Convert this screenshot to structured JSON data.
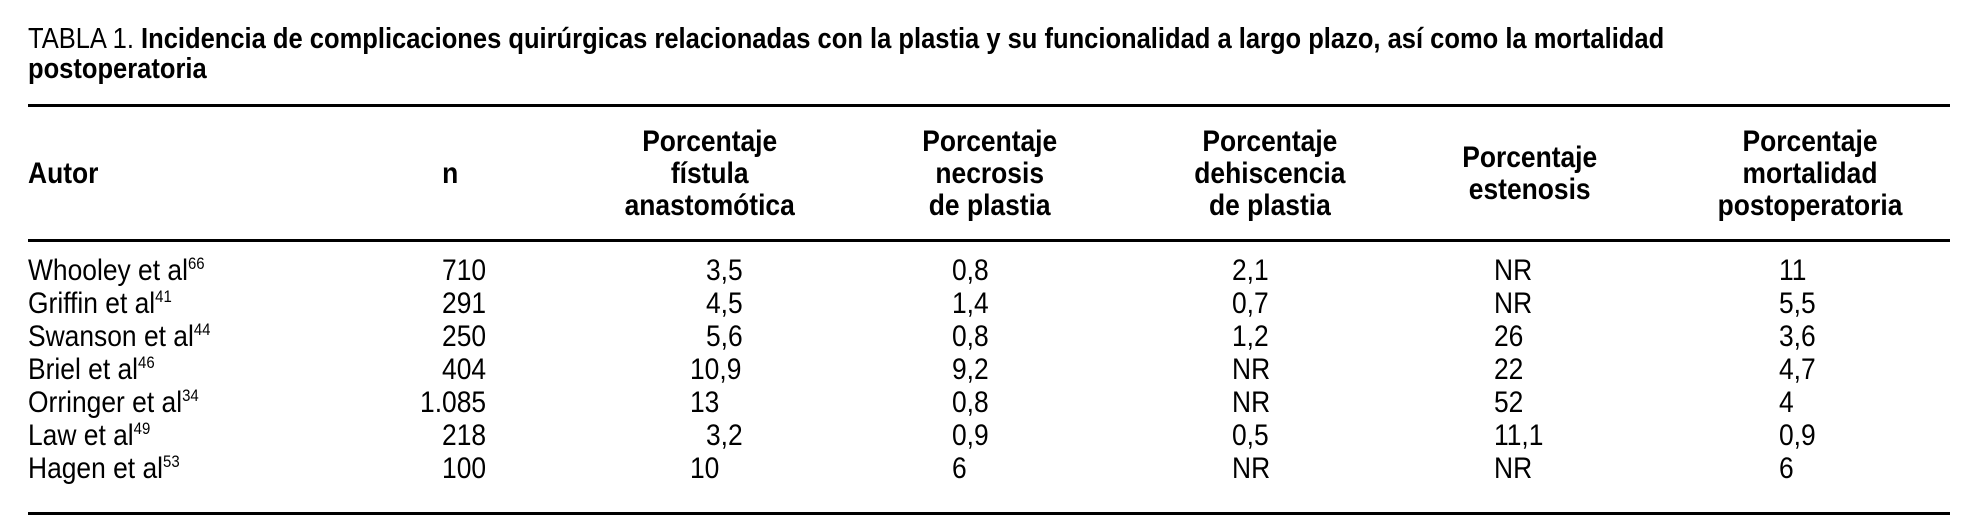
{
  "table": {
    "label": "TABLA 1.",
    "title": "Incidencia de complicaciones quirúrgicas relacionadas con la plastia y su funcionalidad a largo plazo, así como la mortalidad postoperatoria",
    "columns": [
      {
        "key": "autor",
        "label": "Autor"
      },
      {
        "key": "n",
        "label": "n"
      },
      {
        "key": "fistula",
        "label": "Porcentaje\nfístula\nanastomótica"
      },
      {
        "key": "necrosis",
        "label": "Porcentaje\nnecrosis\nde plastia"
      },
      {
        "key": "dehiscencia",
        "label": "Porcentaje\ndehiscencia\nde plastia"
      },
      {
        "key": "estenosis",
        "label": "Porcentaje\nestenosis"
      },
      {
        "key": "mortalidad",
        "label": "Porcentaje\nmortalidad\npostoperatoria"
      }
    ],
    "rows": [
      {
        "autor": "Whooley et al",
        "ref": "66",
        "n": "710",
        "fistula": "3,5",
        "necrosis": "0,8",
        "dehiscencia": "2,1",
        "estenosis": "NR",
        "mortalidad": "11"
      },
      {
        "autor": "Griffin et al",
        "ref": "41",
        "n": "291",
        "fistula": "4,5",
        "necrosis": "1,4",
        "dehiscencia": "0,7",
        "estenosis": "NR",
        "mortalidad": "5,5"
      },
      {
        "autor": "Swanson et al",
        "ref": "44",
        "n": "250",
        "fistula": "5,6",
        "necrosis": "0,8",
        "dehiscencia": "1,2",
        "estenosis": "26",
        "mortalidad": "3,6"
      },
      {
        "autor": "Briel et al",
        "ref": "46",
        "n": "404",
        "fistula": "10,9",
        "necrosis": "9,2",
        "dehiscencia": "NR",
        "estenosis": "22",
        "mortalidad": "4,7"
      },
      {
        "autor": "Orringer et al",
        "ref": "34",
        "n": "1.085",
        "fistula": "13",
        "necrosis": "0,8",
        "dehiscencia": "NR",
        "estenosis": "52",
        "mortalidad": "4"
      },
      {
        "autor": "Law et al",
        "ref": "49",
        "n": "218",
        "fistula": "3,2",
        "necrosis": "0,9",
        "dehiscencia": "0,5",
        "estenosis": "11,1",
        "mortalidad": "0,9"
      },
      {
        "autor": "Hagen et al",
        "ref": "53",
        "n": "100",
        "fistula": "10",
        "necrosis": "6",
        "dehiscencia": "NR",
        "estenosis": "NR",
        "mortalidad": "6"
      }
    ]
  }
}
